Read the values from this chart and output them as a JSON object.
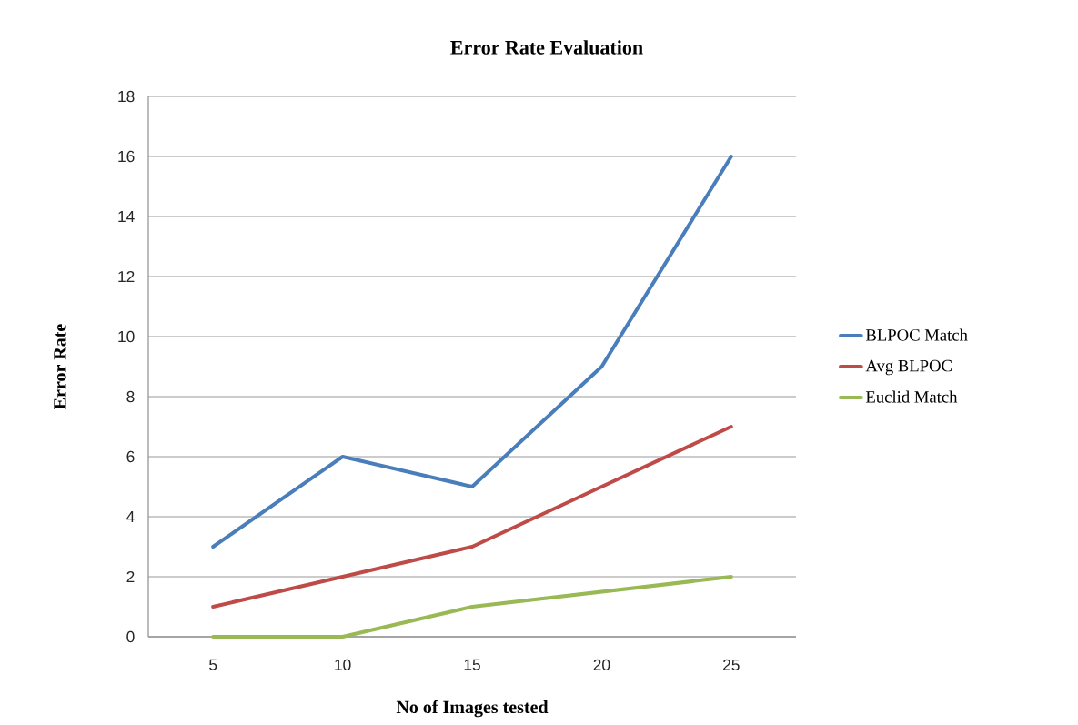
{
  "chart_data": {
    "type": "line",
    "title": "Error Rate Evaluation",
    "xlabel": "No of  Images tested",
    "ylabel": "Error Rate",
    "categories": [
      "5",
      "10",
      "15",
      "20",
      "25"
    ],
    "series": [
      {
        "name": "BLPOC Match",
        "color": "#4a7ebb",
        "values": [
          3,
          6,
          5,
          9,
          16
        ]
      },
      {
        "name": "Avg BLPOC",
        "color": "#be4b48",
        "values": [
          1,
          2,
          3,
          5,
          7
        ]
      },
      {
        "name": "Euclid Match",
        "color": "#98b954",
        "values": [
          0,
          0,
          1,
          1.5,
          2
        ]
      }
    ],
    "ylim": [
      0,
      18
    ],
    "yticks": [
      0,
      2,
      4,
      6,
      8,
      10,
      12,
      14,
      16,
      18
    ],
    "grid": "y",
    "legend": "right",
    "marker": "none",
    "line_style": "solid"
  }
}
